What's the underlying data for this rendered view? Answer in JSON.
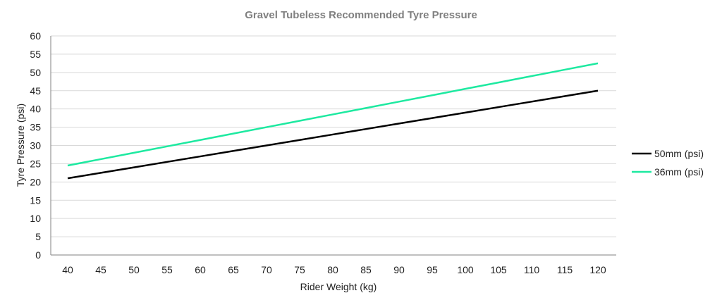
{
  "chart_data": {
    "type": "line",
    "title": "Gravel Tubeless Recommended Tyre Pressure",
    "xlabel": "Rider Weight (kg)",
    "ylabel": "Tyre Pressure (psi)",
    "x": [
      40,
      45,
      50,
      55,
      60,
      65,
      70,
      75,
      80,
      85,
      90,
      95,
      100,
      105,
      110,
      115,
      120
    ],
    "x_tick_labels": [
      "40",
      "45",
      "50",
      "55",
      "60",
      "65",
      "70",
      "75",
      "80",
      "85",
      "90",
      "95",
      "100",
      "105",
      "110",
      "115",
      "120"
    ],
    "y_tick_labels": [
      "0",
      "5",
      "10",
      "15",
      "20",
      "25",
      "30",
      "35",
      "40",
      "45",
      "50",
      "55",
      "60"
    ],
    "xlim": [
      40,
      120
    ],
    "ylim": [
      0,
      60
    ],
    "grid": "horizontal",
    "legend_position": "right",
    "series": [
      {
        "name": "50mm (psi)",
        "color": "#000000",
        "values": [
          21,
          22.5,
          24,
          25.5,
          27,
          28.5,
          30,
          31.5,
          33,
          34.5,
          36,
          37.5,
          39,
          40.5,
          42,
          43.5,
          45
        ]
      },
      {
        "name": "36mm (psi)",
        "color": "#1de9a0",
        "values": [
          24.5,
          26.25,
          28,
          29.75,
          31.5,
          33.25,
          35,
          36.75,
          38.5,
          40.25,
          42,
          43.75,
          45.5,
          47.25,
          49,
          50.75,
          52.5
        ]
      }
    ]
  }
}
